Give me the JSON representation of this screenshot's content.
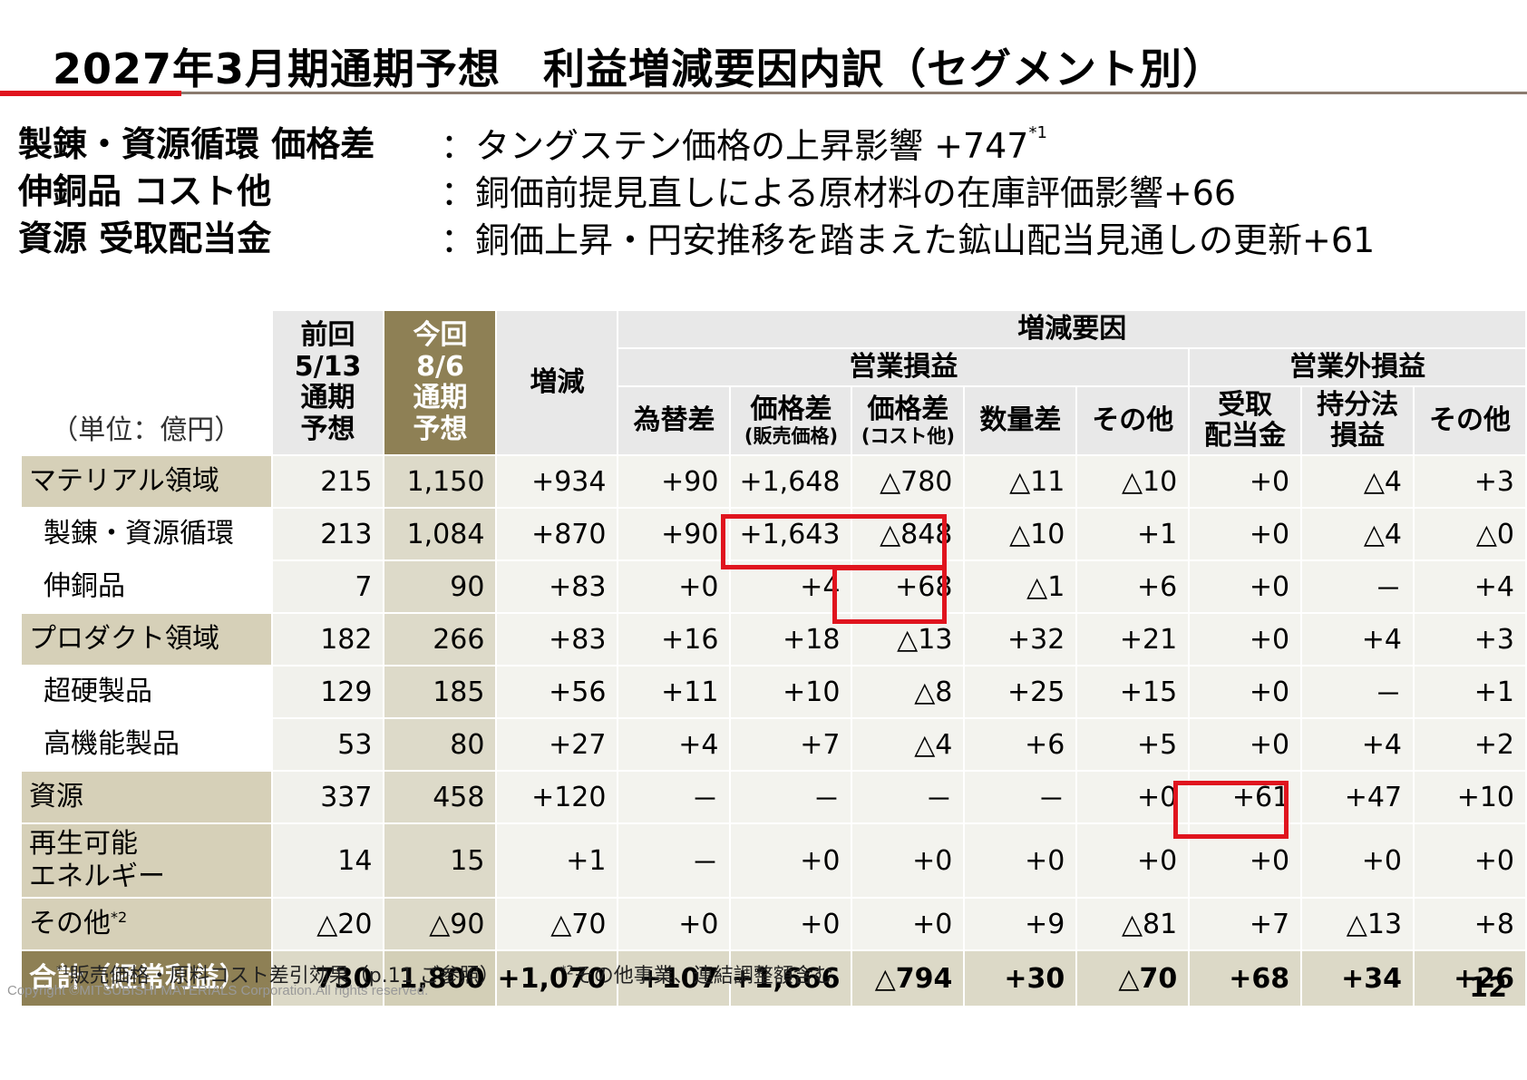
{
  "title": "2027年3月期通期予想　利益増減要因内訳（セグメント別）",
  "bullets": [
    {
      "label": "製錬・資源循環 価格差",
      "colon": "：",
      "text": "タングステン価格の上昇影響 +747",
      "sup": "*1"
    },
    {
      "label": "伸銅品 コスト他",
      "colon": "：",
      "text": "銅価前提見直しによる原材料の在庫評価影響+66",
      "sup": ""
    },
    {
      "label": "資源 受取配当金",
      "colon": "：",
      "text": "銅価上昇・円安推移を踏まえた鉱山配当見通しの更新+61",
      "sup": ""
    }
  ],
  "table": {
    "unit": "（単位：億円）",
    "col_prev": [
      "前回",
      "5/13",
      "通期",
      "予想"
    ],
    "col_cur": [
      "今回",
      "8/6",
      "通期",
      "予想"
    ],
    "col_diff": "増減",
    "factors": "増減要因",
    "operating": "営業損益",
    "non_operating": "営業外損益",
    "sub_headers": [
      {
        "main": "為替差",
        "sub": ""
      },
      {
        "main": "価格差",
        "sub": "(販売価格)"
      },
      {
        "main": "価格差",
        "sub": "(コスト他)"
      },
      {
        "main": "数量差",
        "sub": ""
      },
      {
        "main": "その他",
        "sub": ""
      },
      {
        "main": "受取\n配当金",
        "sub": ""
      },
      {
        "main": "持分法\n損益",
        "sub": ""
      },
      {
        "main": "その他",
        "sub": ""
      }
    ],
    "rows": [
      {
        "label": "マテリアル領域",
        "kind": "seg",
        "values": [
          "215",
          "1,150",
          "+934",
          "+90",
          "+1,648",
          "△780",
          "△11",
          "△10",
          "+0",
          "△4",
          "+3"
        ]
      },
      {
        "label": "製錬・資源循環",
        "kind": "sub1",
        "values": [
          "213",
          "1,084",
          "+870",
          "+90",
          "+1,643",
          "△848",
          "△10",
          "+1",
          "+0",
          "△4",
          "△0"
        ]
      },
      {
        "label": "伸銅品",
        "kind": "sub1",
        "values": [
          "7",
          "90",
          "+83",
          "+0",
          "+4",
          "+68",
          "△1",
          "+6",
          "+0",
          "－",
          "+4"
        ]
      },
      {
        "label": "プロダクト領域",
        "kind": "seg",
        "values": [
          "182",
          "266",
          "+83",
          "+16",
          "+18",
          "△13",
          "+32",
          "+21",
          "+0",
          "+4",
          "+3"
        ]
      },
      {
        "label": "超硬製品",
        "kind": "sub1",
        "values": [
          "129",
          "185",
          "+56",
          "+11",
          "+10",
          "△8",
          "+25",
          "+15",
          "+0",
          "－",
          "+1"
        ]
      },
      {
        "label": "高機能製品",
        "kind": "sub1",
        "values": [
          "53",
          "80",
          "+27",
          "+4",
          "+7",
          "△4",
          "+6",
          "+5",
          "+0",
          "+4",
          "+2"
        ]
      },
      {
        "label": "資源",
        "kind": "seg",
        "values": [
          "337",
          "458",
          "+120",
          "－",
          "－",
          "－",
          "－",
          "+0",
          "+61",
          "+47",
          "+10"
        ]
      },
      {
        "label": "再生可能\nエネルギー",
        "kind": "seg",
        "values": [
          "14",
          "15",
          "+1",
          "－",
          "+0",
          "+0",
          "+0",
          "+0",
          "+0",
          "+0",
          "+0"
        ]
      },
      {
        "label": "その他",
        "label_sup": "*2",
        "kind": "seg",
        "values": [
          "△20",
          "△90",
          "△70",
          "+0",
          "+0",
          "+0",
          "+9",
          "△81",
          "+7",
          "△13",
          "+8"
        ]
      },
      {
        "label": "合計（経常利益）",
        "kind": "total",
        "values": [
          "730",
          "1,800",
          "+1,070",
          "+107",
          "+1,666",
          "△794",
          "+30",
          "△70",
          "+68",
          "+34",
          "+26"
        ]
      }
    ]
  },
  "footnotes": [
    {
      "sup": "*1",
      "text": "販売価格・原料コスト差引効果（p.11 ご参照）"
    },
    {
      "sup": "*2",
      "text": "その他事業、連結調整額含む"
    }
  ],
  "copyright": "Copyright ©MITSUBISHI MATERIALS Corporation.All rights reserved.",
  "page_number": "12",
  "colors": {
    "accent_red": "#e0141e",
    "header_olive": "#8e8055",
    "segment_tan": "#d6d0b8"
  }
}
